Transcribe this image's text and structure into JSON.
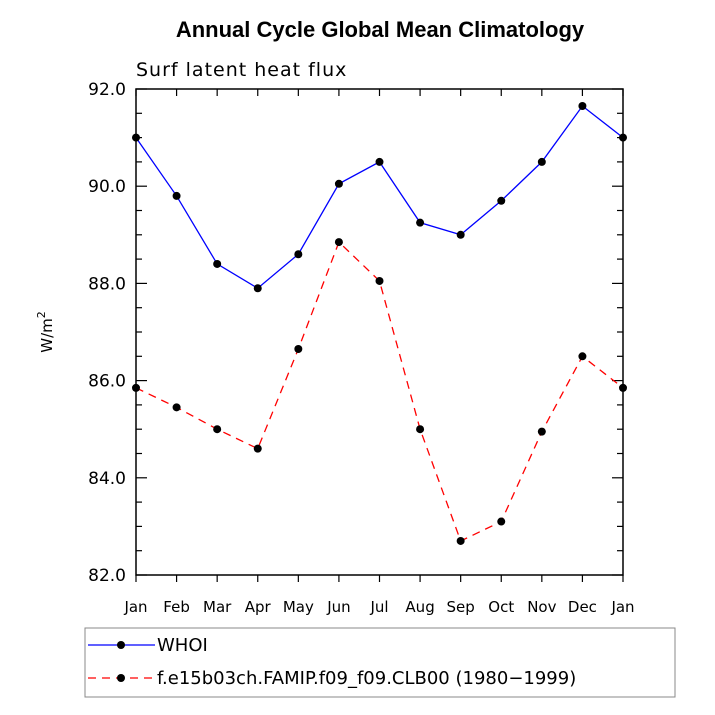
{
  "chart_data": {
    "type": "line",
    "title": "Annual Cycle Global Mean Climatology",
    "subtitle": "Surf latent heat flux",
    "ylabel": "W/m",
    "ylabel_sup": "2",
    "xlabel": "",
    "ylim": [
      82.0,
      92.0
    ],
    "yticks": [
      "82.0",
      "84.0",
      "86.0",
      "88.0",
      "90.0",
      "92.0"
    ],
    "categories": [
      "Jan",
      "Feb",
      "Mar",
      "Apr",
      "May",
      "Jun",
      "Jul",
      "Aug",
      "Sep",
      "Oct",
      "Nov",
      "Dec",
      "Jan"
    ],
    "series": [
      {
        "name": "WHOI",
        "color": "#0000ff",
        "dash": "solid",
        "values": [
          91.0,
          89.8,
          88.4,
          87.9,
          88.6,
          90.05,
          90.5,
          89.25,
          89.0,
          89.7,
          90.5,
          91.65,
          91.0
        ]
      },
      {
        "name": "f.e15b03ch.FAMIP.f09_f09.CLB00 (1980−1999)",
        "color": "#ff0000",
        "dash": "dashed",
        "values": [
          85.85,
          85.45,
          85.0,
          84.6,
          86.65,
          88.85,
          88.05,
          85.0,
          82.7,
          83.1,
          84.95,
          86.5,
          85.85
        ]
      }
    ]
  }
}
